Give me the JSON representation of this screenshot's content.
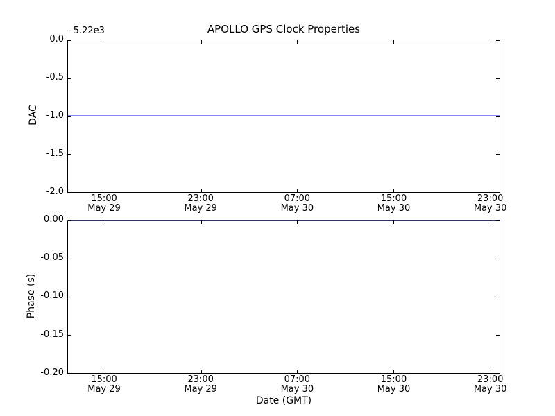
{
  "title": "APOLLO GPS Clock Properties",
  "top_plot": {
    "ylabel": "DAC",
    "offset": "-5.22e3",
    "yticks": [
      "0.0",
      "-0.5",
      "-1.0",
      "-1.5",
      "-2.0"
    ]
  },
  "bottom_plot": {
    "ylabel": "Phase (s)",
    "xlabel": "Date (GMT)",
    "yticks": [
      "0.00",
      "-0.05",
      "-0.10",
      "-0.15",
      "-0.20"
    ]
  },
  "xticks": [
    {
      "time": "15:00",
      "date": "May 29"
    },
    {
      "time": "23:00",
      "date": "May 29"
    },
    {
      "time": "07:00",
      "date": "May 30"
    },
    {
      "time": "15:00",
      "date": "May 30"
    },
    {
      "time": "23:00",
      "date": "May 30"
    }
  ],
  "colors": {
    "dac_line": "#8585f2",
    "phase_line_over_spine": "#32325e",
    "frame": "#000000",
    "background": "#ffffff",
    "text": "#000000"
  },
  "chart_data": [
    {
      "type": "line",
      "subplot": "top",
      "title": "APOLLO GPS Clock Properties",
      "xlabel": "",
      "ylabel": "DAC",
      "y_offset_label": "-5.22e3",
      "ylim": [
        -2.0,
        0.0
      ],
      "yticks": [
        0.0,
        -0.5,
        -1.0,
        -1.5,
        -2.0
      ],
      "xticklabels": [
        "15:00 May 29",
        "23:00 May 29",
        "07:00 May 30",
        "15:00 May 30",
        "23:00 May 30"
      ],
      "series": [
        {
          "name": "DAC",
          "shape": "constant horizontal line spanning full x range",
          "value_displayed": -1.0,
          "value_with_offset": -5221.0,
          "color": "#0000ff"
        }
      ],
      "grid": false,
      "legend": null
    },
    {
      "type": "line",
      "subplot": "bottom",
      "title": "",
      "xlabel": "Date (GMT)",
      "ylabel": "Phase (s)",
      "ylim": [
        -0.2,
        0.0
      ],
      "yticks": [
        0.0,
        -0.05,
        -0.1,
        -0.15,
        -0.2
      ],
      "xticklabels": [
        "15:00 May 29",
        "23:00 May 29",
        "07:00 May 30",
        "15:00 May 30",
        "23:00 May 30"
      ],
      "series": [
        {
          "name": "Phase",
          "shape": "constant horizontal line spanning full x range, overlapping top spine",
          "value_displayed": 0.0,
          "color": "#0000ff"
        }
      ],
      "grid": false,
      "legend": null
    }
  ]
}
